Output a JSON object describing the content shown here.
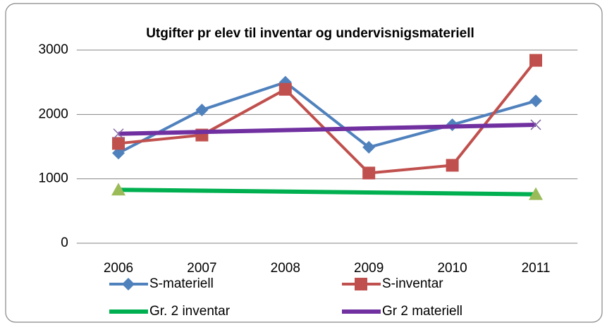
{
  "chart_data": {
    "type": "line",
    "title": "Utgifter pr elev til inventar og undervisnigsmateriell",
    "x": [
      2006,
      2007,
      2008,
      2009,
      2010,
      2011
    ],
    "xlim": [
      2005.5,
      2011.5
    ],
    "xticks": [
      2006,
      2007,
      2008,
      2009,
      2010,
      2011
    ],
    "ylim": [
      0,
      3000
    ],
    "yticks": [
      0,
      1000,
      2000,
      3000
    ],
    "grid": true,
    "legend": "bottom",
    "series": [
      {
        "name": "S-materiell",
        "color": "#4f81bd",
        "marker": "diamond",
        "values": [
          1400,
          2070,
          2500,
          1490,
          1840,
          2210
        ]
      },
      {
        "name": "S-inventar",
        "color": "#c0504d",
        "marker": "square",
        "values": [
          1550,
          1680,
          2390,
          1090,
          1210,
          2840
        ]
      },
      {
        "name": "Gr. 2 inventar",
        "color": "#00b050",
        "marker_color": "#9bbb59",
        "marker": "triangle",
        "x": [
          2006,
          2011
        ],
        "values": [
          830,
          760
        ]
      },
      {
        "name": "Gr 2 materiell",
        "color": "#7030a0",
        "marker_color": "#8064a2",
        "marker": "x",
        "x": [
          2006,
          2011
        ],
        "values": [
          1700,
          1840
        ]
      }
    ]
  }
}
